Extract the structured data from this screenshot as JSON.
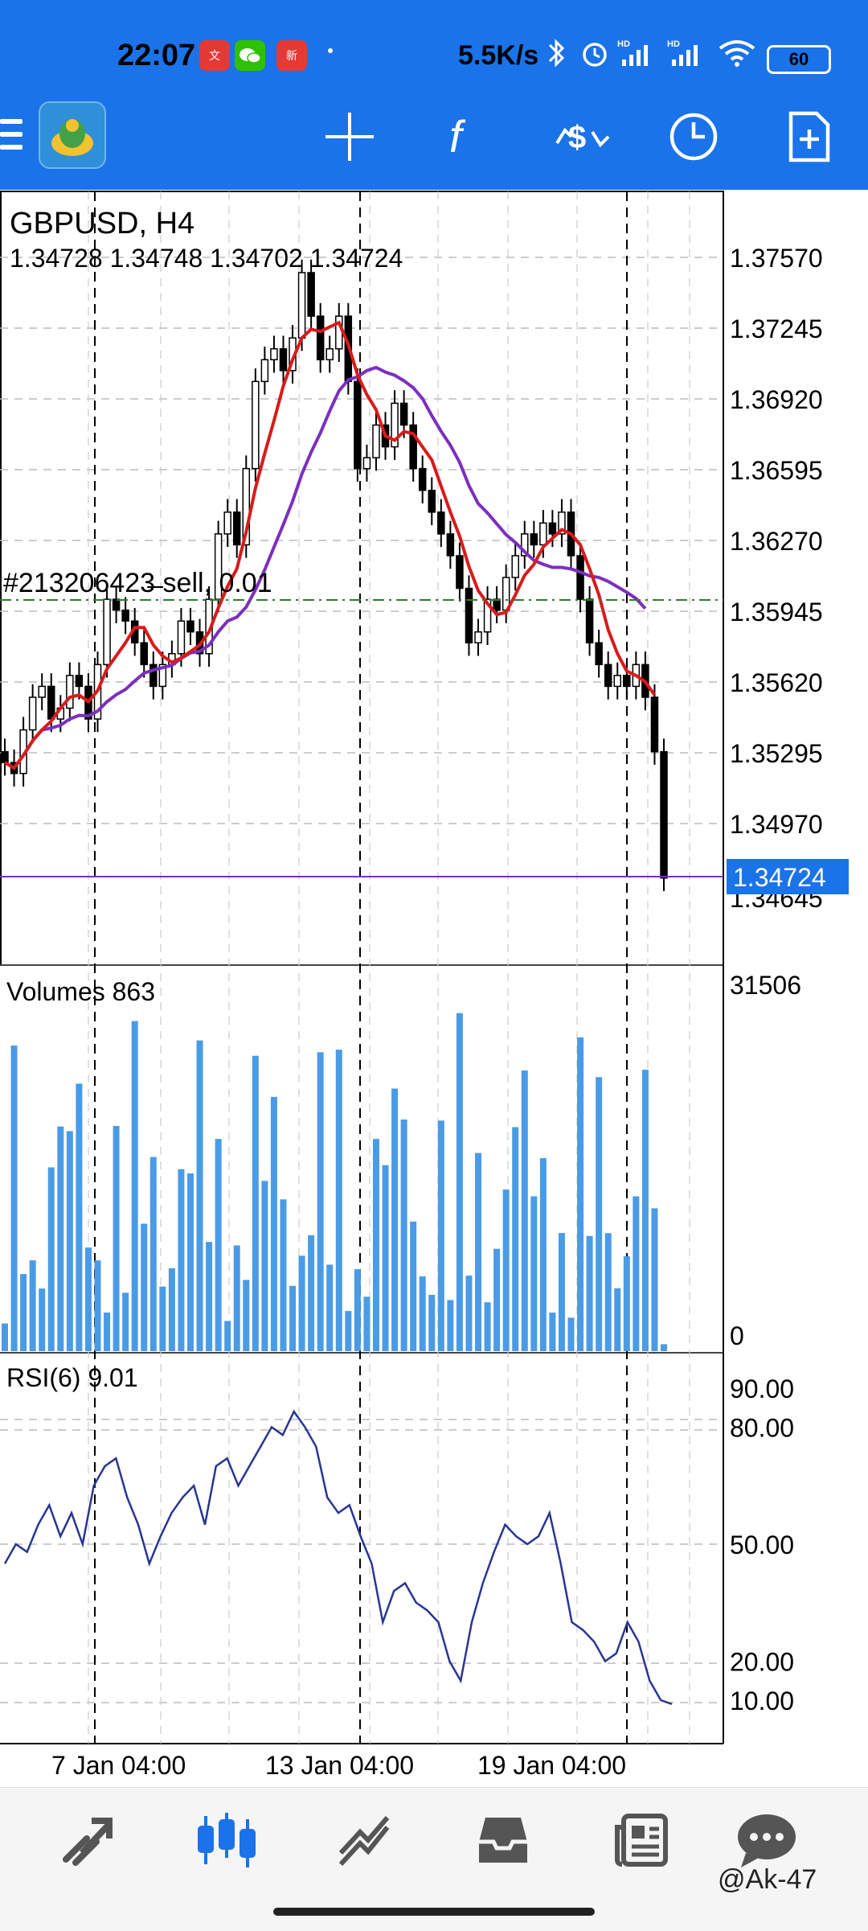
{
  "status_bar": {
    "time": "22:07",
    "notification_apps": [
      {
        "name": "文华财经",
        "color": "#e53935"
      },
      {
        "name": "wechat-icon",
        "color": "#2dc100"
      },
      {
        "name": "新浪",
        "color": "#e53935"
      }
    ],
    "net_speed": "5.5K/s",
    "icons": [
      "bluetooth-icon",
      "alarm-icon",
      "signal-hd-icon",
      "signal-hd-icon",
      "wifi-icon"
    ],
    "battery": "60"
  },
  "toolbar": {
    "icons": [
      "menu-icon",
      "app-logo-icon",
      "crosshair-icon",
      "indicators-icon",
      "trade-icon",
      "timeframe-icon",
      "new-order-icon"
    ],
    "indicators_glyph": "f"
  },
  "chart": {
    "symbol": "GBPUSD, H4",
    "ohlc": "1.34728 1.34748 1.34702 1.34724",
    "order_line_label": "#213206423̶ sell, 0.01",
    "current_price": "1.34724",
    "hidden_price_tick": "1.34645",
    "price_ticks": [
      "1.37570",
      "1.37245",
      "1.36920",
      "1.36595",
      "1.36270",
      "1.35945",
      "1.35620",
      "1.35295",
      "1.34970"
    ],
    "time_labels": [
      "7 Jan 04:00",
      "13 Jan 04:00",
      "19 Jan 04:00"
    ],
    "colors": {
      "bull": "#000000",
      "bear": "#000000",
      "ma_fast": "#d81b1b",
      "ma_slow": "#7b2fbe",
      "volume": "#4a9be6",
      "rsi": "#283593",
      "price_line": "#7b2fbe",
      "order_line": "#2e7d32",
      "price_badge": "#1a73e8"
    }
  },
  "volumes": {
    "label": "Volumes 863",
    "max_tick": "31506",
    "min_tick": "0"
  },
  "rsi": {
    "label": "RSI(6) 9.01",
    "ticks": [
      "90.00",
      "80.00",
      "50.00",
      "20.00",
      "10.00"
    ]
  },
  "chart_data": {
    "type": "candlestick",
    "symbol": "GBPUSD",
    "timeframe": "H4",
    "ylim": [
      1.3455,
      1.377
    ],
    "candles_close": [
      1.3525,
      1.352,
      1.354,
      1.3555,
      1.356,
      1.3545,
      1.355,
      1.3565,
      1.356,
      1.3545,
      1.357,
      1.36,
      1.3595,
      1.359,
      1.358,
      1.357,
      1.356,
      1.357,
      1.3575,
      1.359,
      1.3585,
      1.3575,
      1.36,
      1.363,
      1.364,
      1.3625,
      1.366,
      1.37,
      1.371,
      1.3715,
      1.3705,
      1.372,
      1.375,
      1.373,
      1.371,
      1.3715,
      1.373,
      1.37,
      1.366,
      1.3665,
      1.368,
      1.367,
      1.369,
      1.368,
      1.366,
      1.365,
      1.364,
      1.363,
      1.362,
      1.3605,
      1.358,
      1.3585,
      1.36,
      1.3595,
      1.361,
      1.362,
      1.363,
      1.3625,
      1.3635,
      1.363,
      1.364,
      1.362,
      1.36,
      1.358,
      1.357,
      1.356,
      1.3565,
      1.356,
      1.357,
      1.3555,
      1.353,
      1.3472
    ],
    "ma_fast_label": "red moving average",
    "rsi_values": [
      45,
      50,
      48,
      55,
      60,
      52,
      58,
      50,
      65,
      70,
      72,
      62,
      55,
      45,
      52,
      58,
      62,
      65,
      55,
      70,
      72,
      65,
      70,
      75,
      80,
      78,
      84,
      80,
      75,
      62,
      58,
      60,
      52,
      45,
      30,
      38,
      40,
      35,
      33,
      30,
      20,
      15,
      30,
      40,
      48,
      55,
      52,
      50,
      52,
      58,
      45,
      30,
      28,
      25,
      20,
      22,
      30,
      25,
      15,
      10,
      9
    ]
  }
}
